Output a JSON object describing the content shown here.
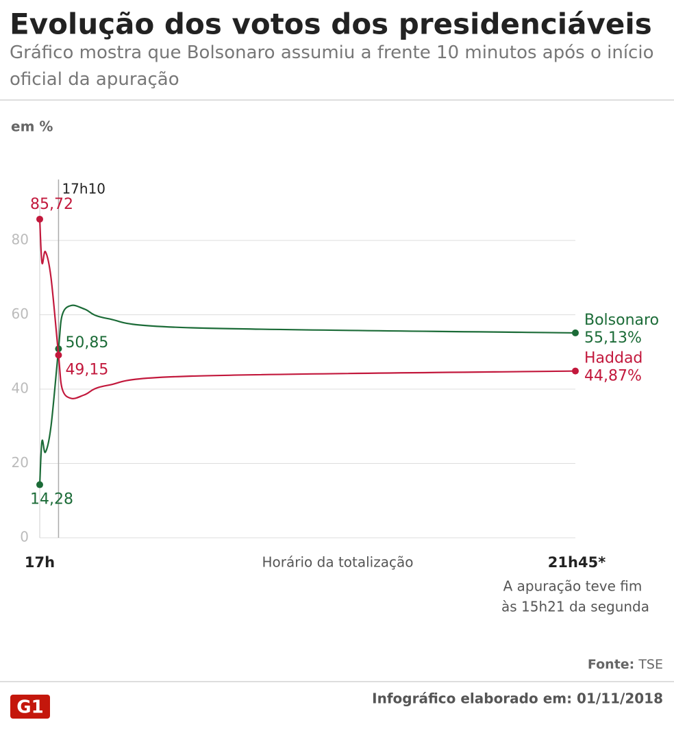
{
  "chart_data": {
    "type": "line",
    "title": "Evolução dos votos dos presidenciáveis",
    "subtitle": "Gráfico mostra que Bolsonaro assumiu a frente 10 minutos após o início oficial da apuração",
    "y_label": "em %",
    "x_label": "Horário da totalização",
    "note": [
      "A apuração teve fim",
      "às 15h21 da segunda"
    ],
    "source_label": "Fonte:",
    "source": "TSE",
    "footer": "Infográfico elaborado em: 01/11/2018",
    "logo": "G1",
    "x": [
      17,
      17.02,
      17.05,
      17.1,
      17.1667,
      17.2,
      17.28,
      17.4,
      17.6,
      18.35,
      21.75
    ],
    "xlim": [
      17,
      21.75
    ],
    "xticks": [
      {
        "value": 17,
        "label": "17h"
      },
      {
        "value": 21.75,
        "label": "21h45*"
      }
    ],
    "marker_line": {
      "value": 17.1667,
      "label": "17h10"
    },
    "ylim": [
      0,
      85.72
    ],
    "yticks": [
      0,
      20,
      40,
      60,
      80
    ],
    "grid": true,
    "series": [
      {
        "name": "Bolsonaro",
        "color": "#1b6b37",
        "values": [
          14.28,
          26,
          23,
          30,
          50.85,
          60,
          62.5,
          61.5,
          59,
          56.5,
          55.13
        ],
        "value_labels": [
          "14,28",
          null,
          null,
          null,
          "50,85",
          null,
          null,
          null,
          null,
          null,
          "55,13%"
        ]
      },
      {
        "name": "Haddad",
        "color": "#c2183c",
        "values": [
          85.72,
          74,
          77,
          70,
          49.15,
          40,
          37.5,
          38.5,
          41,
          43.5,
          44.87
        ],
        "value_labels": [
          "85,72",
          null,
          null,
          null,
          "49,15",
          null,
          null,
          null,
          null,
          null,
          "44,87%"
        ]
      }
    ]
  }
}
